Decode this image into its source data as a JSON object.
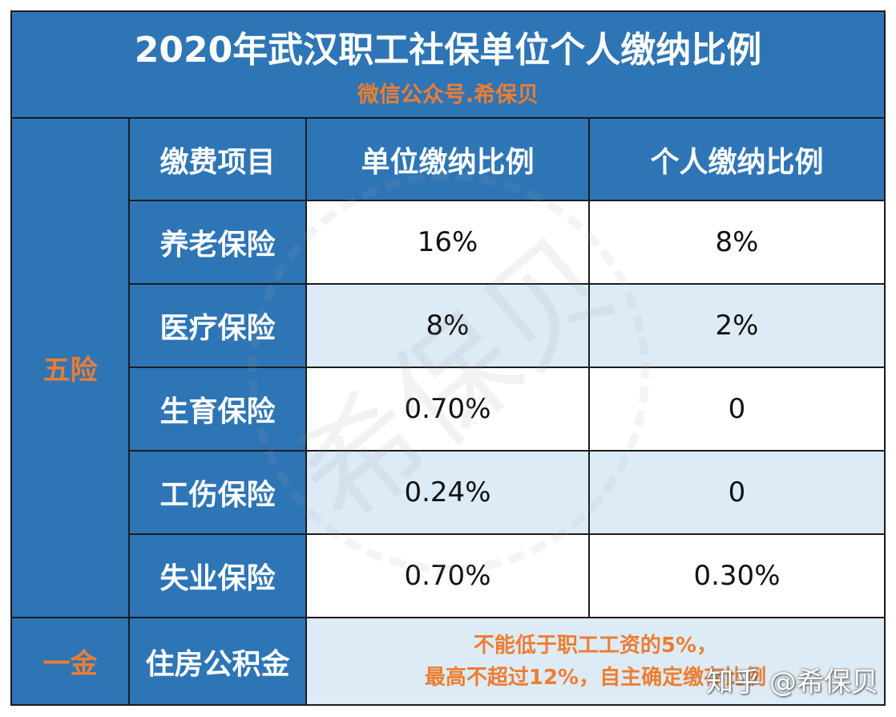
{
  "header": {
    "title": "2020年武汉职工社保单位个人缴纳比例",
    "subtitle": "微信公众号.希保贝"
  },
  "table": {
    "columns": [
      "缴费项目",
      "单位缴纳比例",
      "个人缴纳比例"
    ],
    "groups": [
      {
        "label": "五险",
        "rows": [
          [
            "养老保险",
            "16%",
            "8%"
          ],
          [
            "医疗保险",
            "8%",
            "2%"
          ],
          [
            "生育保险",
            "0.70%",
            "0"
          ],
          [
            "工伤保险",
            "0.24%",
            "0"
          ],
          [
            "失业保险",
            "0.70%",
            "0.30%"
          ]
        ]
      },
      {
        "label": "一金",
        "rows": [
          [
            "住房公积金",
            [
              "不能低于职工工资的5%，",
              "最高不超过12%，自主确定缴存比例"
            ]
          ]
        ]
      }
    ]
  },
  "watermarks": [
    "希保贝",
    "知乎 @希保贝"
  ]
}
